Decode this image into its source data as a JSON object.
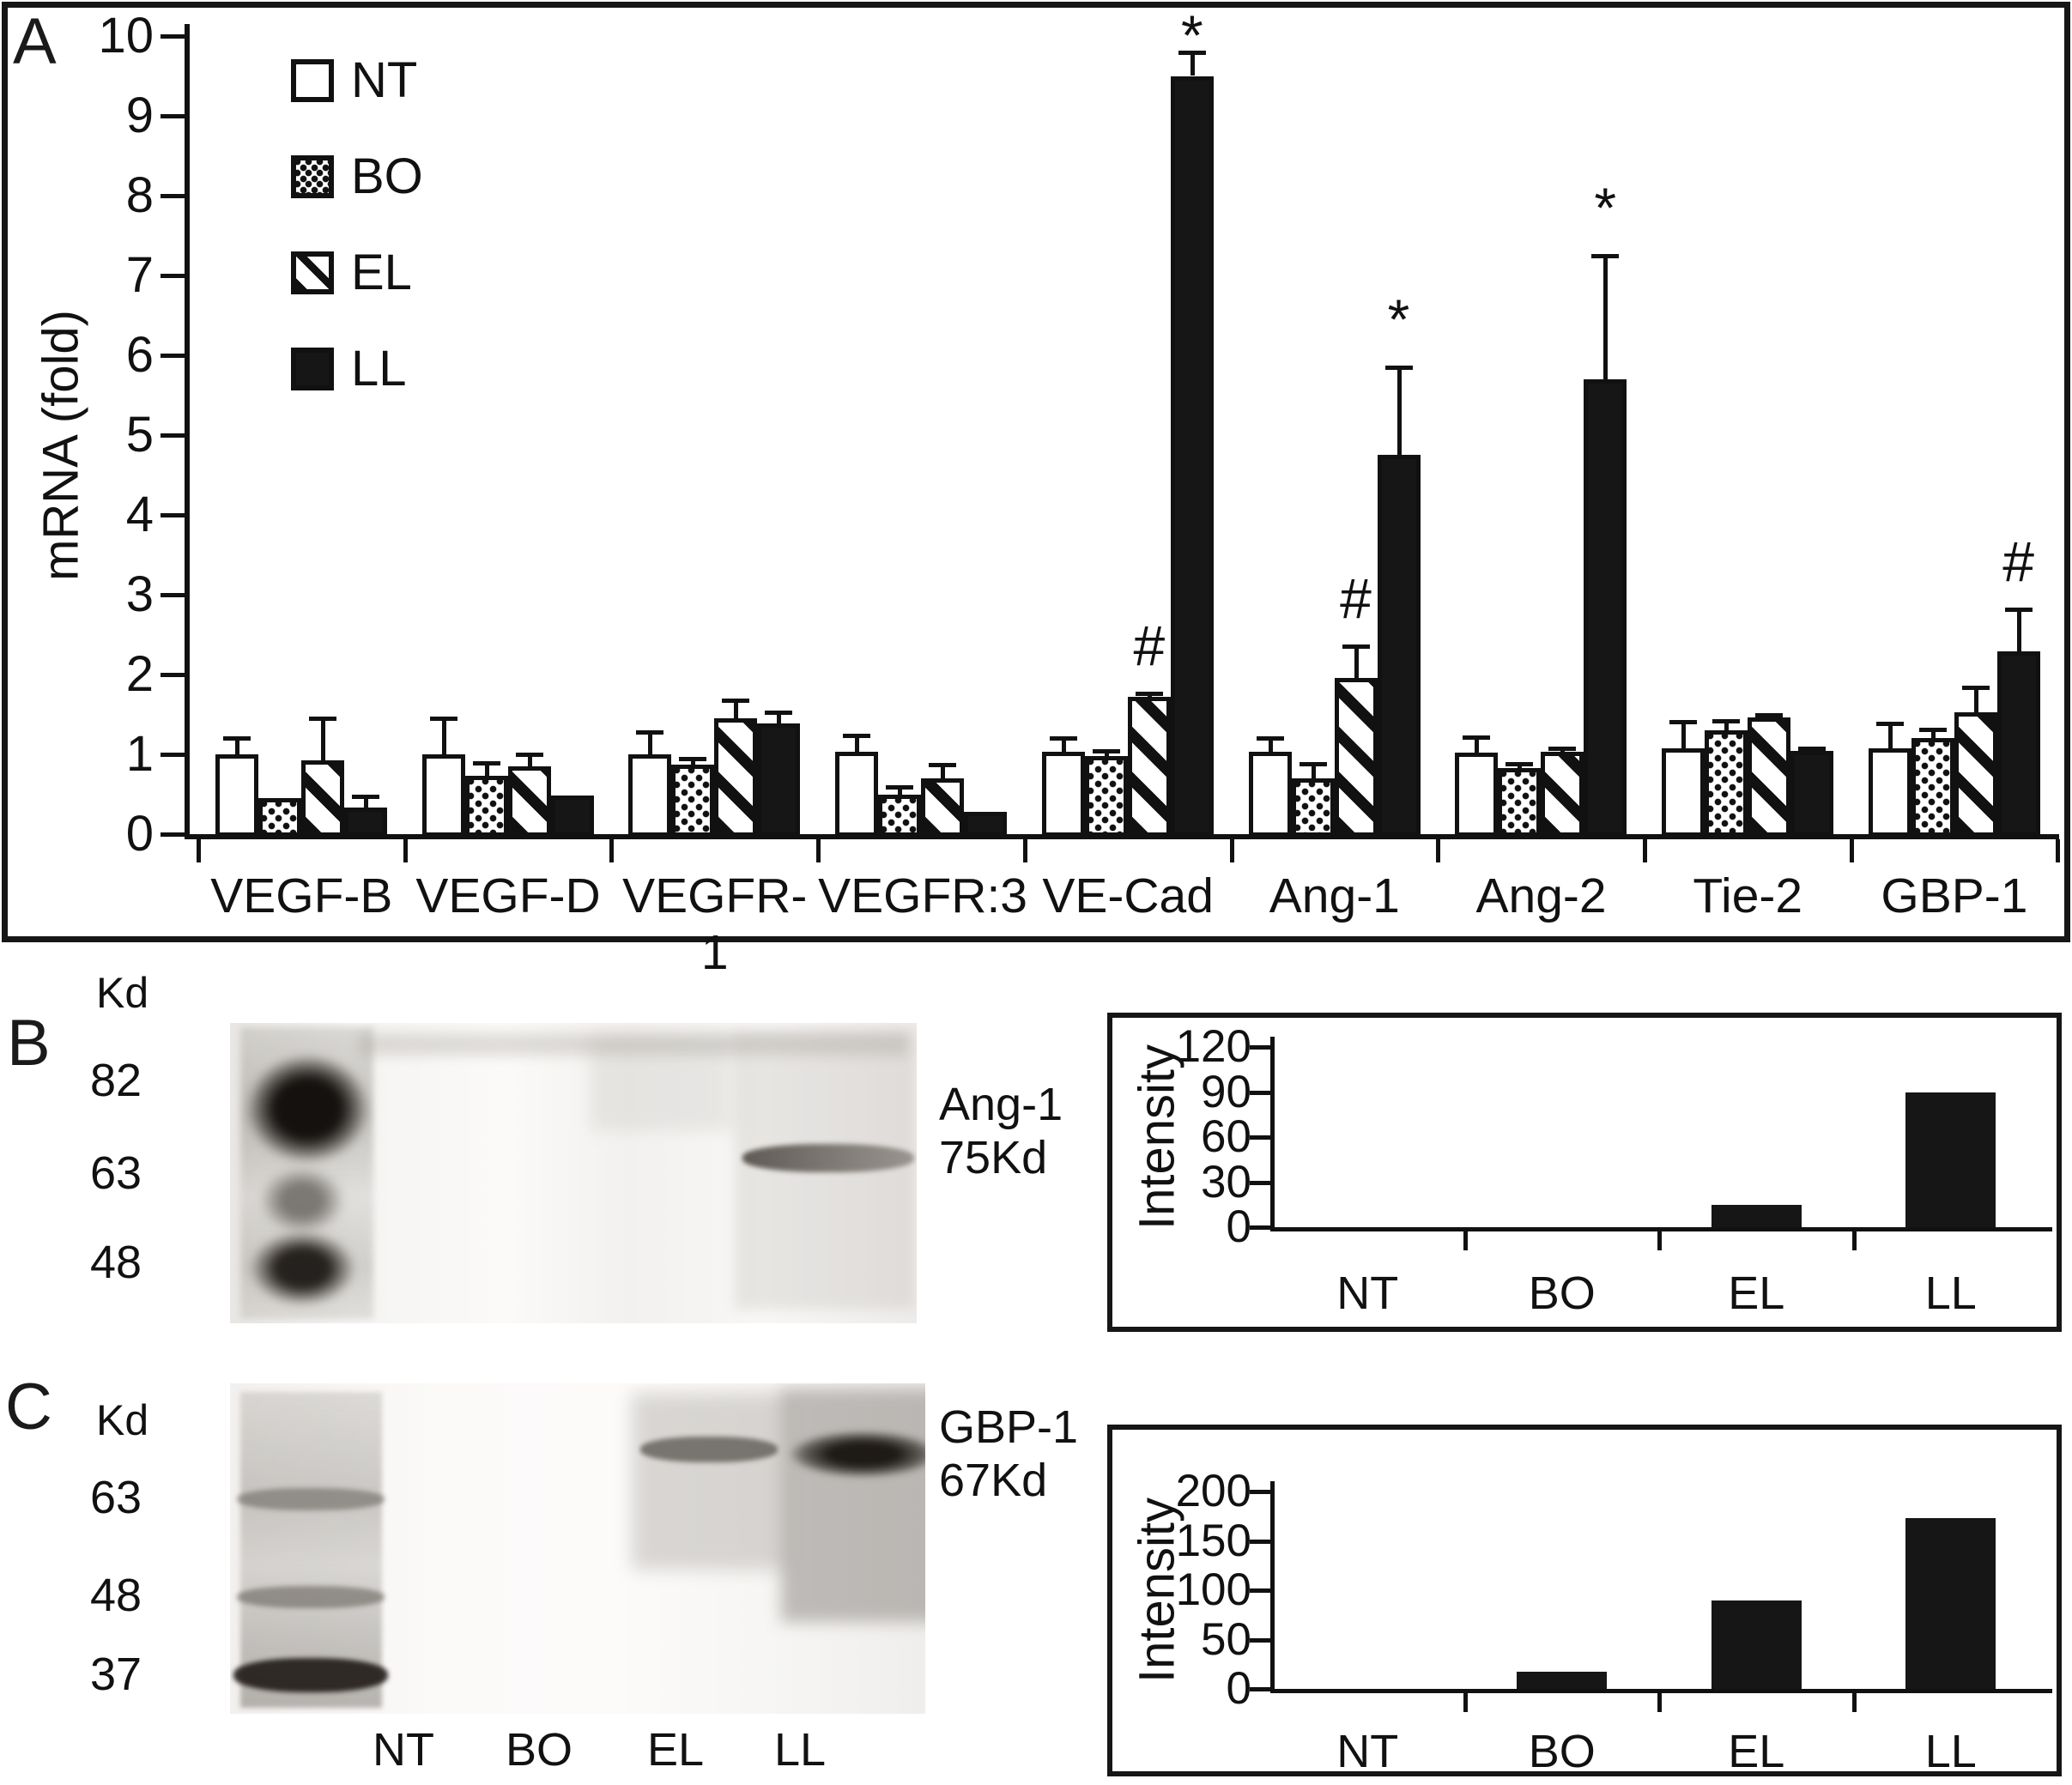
{
  "figure": {
    "background": "#ffffff",
    "ink": "#111111"
  },
  "panel_a": {
    "letter": "A",
    "ylabel": "mRNA (fold)"
  },
  "panel_b": {
    "letter": "B",
    "kd_header": "Kd",
    "markers": [
      "82",
      "63",
      "48"
    ],
    "band_label_line1": "Ang-1",
    "band_label_line2": "75Kd"
  },
  "panel_c": {
    "letter": "C",
    "kd_header": "Kd",
    "markers": [
      "63",
      "48",
      "37"
    ],
    "band_label_line1": "GBP-1",
    "band_label_line2": "67Kd",
    "lane_labels": [
      "NT",
      "BO",
      "EL",
      "LL"
    ]
  },
  "chart_data": [
    {
      "id": "mrna_fold_grouped_bar",
      "type": "bar",
      "title": "",
      "xlabel": "",
      "ylabel": "mRNA (fold)",
      "ylim": [
        0,
        10
      ],
      "yticks": [
        0,
        1,
        2,
        3,
        4,
        5,
        6,
        7,
        8,
        9,
        10
      ],
      "grid": false,
      "legend_position": "top-left-inside",
      "categories": [
        "VEGF-B",
        "VEGF-D",
        "VEGFR-1",
        "VEGFR:3",
        "VE-Cad",
        "Ang-1",
        "Ang-2",
        "Tie-2",
        "GBP-1"
      ],
      "series": [
        {
          "name": "NT",
          "pattern": "open",
          "values": [
            1.0,
            1.0,
            1.0,
            1.03,
            1.03,
            1.03,
            1.02,
            1.07,
            1.08
          ],
          "error_top": [
            1.2,
            1.45,
            1.28,
            1.24,
            1.2,
            1.2,
            1.21,
            1.41,
            1.39
          ]
        },
        {
          "name": "BO",
          "pattern": "dotted",
          "values": [
            0.45,
            0.73,
            0.87,
            0.49,
            0.98,
            0.7,
            0.83,
            1.3,
            1.2
          ],
          "error_top": [
            null,
            0.89,
            0.95,
            0.59,
            1.04,
            0.88,
            0.88,
            1.42,
            1.31
          ]
        },
        {
          "name": "EL",
          "pattern": "hatched",
          "values": [
            0.92,
            0.85,
            1.45,
            0.7,
            1.72,
            1.96,
            1.03,
            1.46,
            1.53
          ],
          "error_top": [
            1.45,
            1.0,
            1.68,
            0.87,
            1.76,
            2.35,
            1.08,
            1.5,
            1.84
          ],
          "marks": [
            null,
            null,
            null,
            null,
            "#",
            "#",
            null,
            null,
            null
          ]
        },
        {
          "name": "LL",
          "pattern": "solid",
          "values": [
            0.33,
            0.48,
            1.39,
            0.28,
            9.5,
            4.75,
            5.7,
            1.04,
            2.29
          ],
          "error_top": [
            0.47,
            null,
            1.53,
            null,
            9.8,
            5.85,
            7.25,
            1.08,
            2.82
          ],
          "marks": [
            null,
            null,
            null,
            null,
            "*",
            "*",
            "*",
            null,
            "#"
          ]
        }
      ]
    },
    {
      "id": "ang1_band_intensity",
      "type": "bar",
      "ylabel": "Intensity",
      "ylim": [
        0,
        120
      ],
      "yticks": [
        0,
        30,
        60,
        90,
        120
      ],
      "categories": [
        "NT",
        "BO",
        "EL",
        "LL"
      ],
      "values": [
        0,
        0,
        15,
        90
      ]
    },
    {
      "id": "gbp1_band_intensity",
      "type": "bar",
      "ylabel": "Intensity",
      "ylim": [
        0,
        200
      ],
      "yticks": [
        0,
        50,
        100,
        150,
        200
      ],
      "categories": [
        "NT",
        "BO",
        "EL",
        "LL"
      ],
      "values": [
        0,
        17,
        90,
        173
      ]
    }
  ]
}
